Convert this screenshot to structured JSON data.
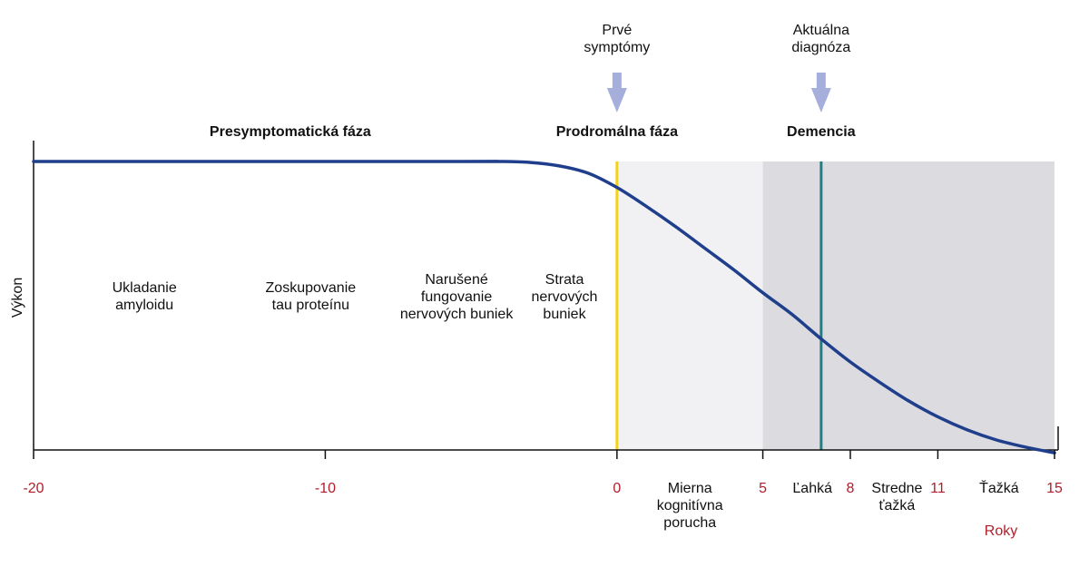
{
  "chart_data": {
    "type": "line",
    "xlim": [
      -20,
      15
    ],
    "ylim": [
      0,
      1
    ],
    "ylabel": "Výkon",
    "xunit": "Roky",
    "x_ticks": [
      -20,
      -10,
      0,
      5,
      8,
      11,
      15
    ],
    "tick_color": "#b11e2a",
    "phases": [
      "Presymptomatická fáza",
      "Prodromálna fáza",
      "Demencia"
    ],
    "arrows": [
      {
        "x": 0,
        "lines": [
          "Prvé",
          "symptómy"
        ]
      },
      {
        "x": 7,
        "lines": [
          "Aktuálna",
          "diagnóza"
        ]
      }
    ],
    "processes": [
      {
        "x": -16.2,
        "lines": [
          "Ukladanie",
          "amyloidu"
        ]
      },
      {
        "x": -10.5,
        "lines": [
          "Zoskupovanie",
          "tau proteínu"
        ]
      },
      {
        "x": -5.5,
        "lines": [
          "Narušené",
          "fungovanie",
          "nervových buniek"
        ]
      },
      {
        "x": -1.8,
        "lines": [
          "Strata",
          "nervových",
          "buniek"
        ]
      }
    ],
    "stages": [
      {
        "x": 2.5,
        "lines": [
          "Mierna",
          "kognitívna",
          "porucha"
        ]
      },
      {
        "x": 6.7,
        "lines": [
          "Ľahká"
        ]
      },
      {
        "x": 9.6,
        "lines": [
          "Stredne",
          "ťažká"
        ]
      },
      {
        "x": 13.1,
        "lines": [
          "Ťažká"
        ]
      }
    ],
    "shaded_regions": [
      {
        "from": 0,
        "to": 5,
        "color": "#f1f1f4"
      },
      {
        "from": 5,
        "to": 15,
        "color": "#dcdce0"
      }
    ],
    "markers": [
      {
        "x": 0,
        "color": "#f2d21b"
      },
      {
        "x": 7,
        "color": "#1f7f87"
      }
    ],
    "series": [
      {
        "color": "#1f3f8c",
        "x": [
          -20,
          -6,
          -4,
          -3,
          -2,
          -1,
          0,
          1,
          2,
          3,
          4,
          5,
          6,
          7,
          8,
          9,
          10,
          11,
          12,
          13,
          14,
          15
        ],
        "y": [
          1.0,
          1.0,
          1.0,
          0.997,
          0.985,
          0.96,
          0.91,
          0.845,
          0.775,
          0.7,
          0.625,
          0.545,
          0.47,
          0.385,
          0.305,
          0.235,
          0.17,
          0.115,
          0.07,
          0.035,
          0.01,
          -0.01
        ]
      }
    ],
    "colors": {
      "arrow": "#a6aedb",
      "axis": "#111111"
    }
  }
}
